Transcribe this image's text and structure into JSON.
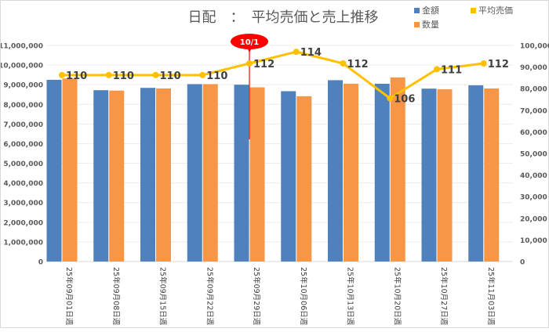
{
  "chart_data": {
    "type": "bar+line",
    "title": "日配　：　平均売価と売上推移",
    "categories": [
      "25年09月01日週",
      "25年09月08日週",
      "25年09月15日週",
      "25年09月22日週",
      "25年09月29日週",
      "25年10月06日週",
      "25年10月13日週",
      "25年10月20日週",
      "25年10月27日週",
      "25年11月03日週"
    ],
    "series": [
      {
        "name": "金額",
        "type": "bar",
        "axis": "left",
        "color": "#4f81bd",
        "values": [
          9250000,
          8720000,
          8840000,
          9030000,
          9000000,
          8670000,
          9230000,
          9050000,
          8800000,
          8970000
        ]
      },
      {
        "name": "数量",
        "type": "bar",
        "axis": "right",
        "color": "#f79646",
        "values": [
          84700,
          79100,
          80100,
          82100,
          80600,
          76500,
          82300,
          85200,
          79700,
          80100
        ]
      },
      {
        "name": "平均売価",
        "type": "line",
        "axis": "hidden",
        "color": "#ffc000",
        "values": [
          110,
          110,
          110,
          110,
          112,
          114,
          112,
          106,
          111,
          112
        ],
        "labels": [
          "110",
          "110",
          "110",
          "110",
          "112",
          "114",
          "112",
          "106",
          "111",
          "112"
        ]
      }
    ],
    "left_axis": {
      "ylim": [
        0,
        11000000
      ],
      "ticks": [
        "0",
        "1,000,000",
        "2,000,000",
        "3,000,000",
        "4,000,000",
        "5,000,000",
        "6,000,000",
        "7,000,000",
        "8,000,000",
        "9,000,000",
        "10,000,000",
        "11,000,000"
      ]
    },
    "right_axis": {
      "ylim": [
        0,
        100000
      ],
      "ticks": [
        "0",
        "10,000",
        "20,000",
        "30,000",
        "40,000",
        "50,000",
        "60,000",
        "70,000",
        "80,000",
        "90,000",
        "100,000"
      ]
    },
    "line_axis_ylim": [
      77.9,
      115.1
    ],
    "grid": true,
    "legend": {
      "placement": "top-right",
      "items": [
        "金額",
        "数量",
        "平均売価"
      ]
    },
    "annotation": {
      "label": "10/1",
      "category_index": 4,
      "color": "#ff0000"
    }
  }
}
